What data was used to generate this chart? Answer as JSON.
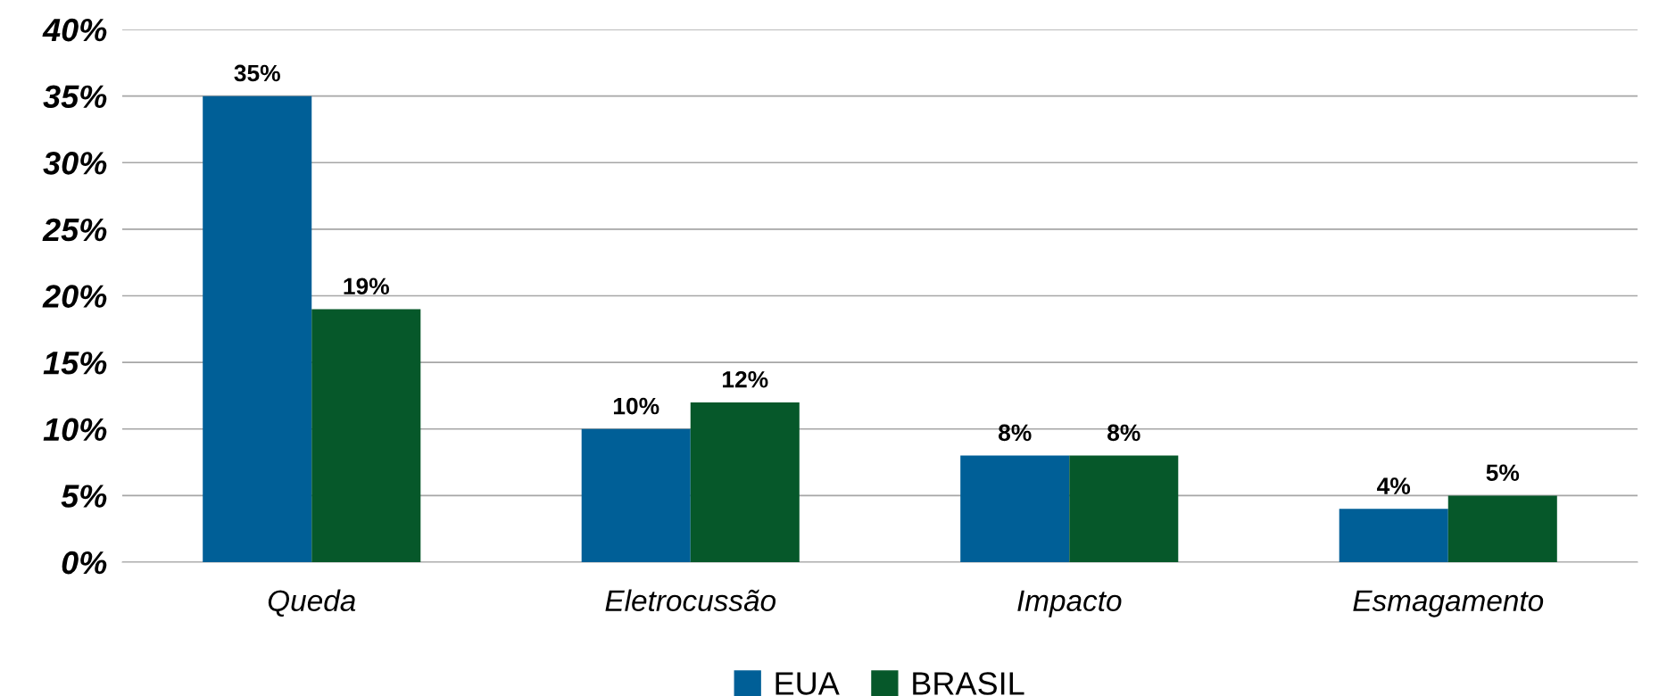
{
  "chart_data": {
    "type": "bar",
    "categories": [
      "Queda",
      "Eletrocussão",
      "Impacto",
      "Esmagamento"
    ],
    "series": [
      {
        "name": "EUA",
        "color": "#005f97",
        "values": [
          35,
          10,
          8,
          4
        ],
        "value_labels": [
          "35%",
          "10%",
          "8%",
          "4%"
        ]
      },
      {
        "name": "BRASIL",
        "color": "#06582a",
        "values": [
          19,
          12,
          8,
          5
        ],
        "value_labels": [
          "19%",
          "12%",
          "8%",
          "5%"
        ]
      }
    ],
    "ylim": [
      0,
      40
    ],
    "yticks": [
      {
        "value": 0,
        "label": "0%"
      },
      {
        "value": 5,
        "label": "5%"
      },
      {
        "value": 10,
        "label": "10%"
      },
      {
        "value": 15,
        "label": "15%"
      },
      {
        "value": 20,
        "label": "20%"
      },
      {
        "value": 25,
        "label": "25%"
      },
      {
        "value": 30,
        "label": "30%"
      },
      {
        "value": 35,
        "label": "35%"
      },
      {
        "value": 40,
        "label": "40%"
      }
    ],
    "grid": "y",
    "legend": "bottom"
  }
}
